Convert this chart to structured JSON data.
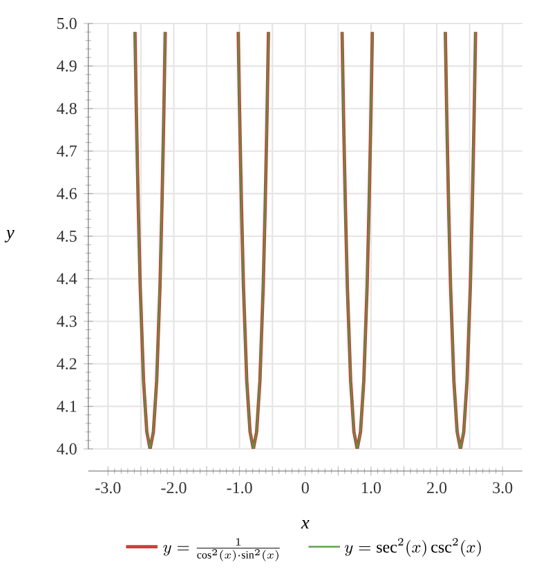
{
  "chart_data": {
    "type": "line",
    "xlabel": "x",
    "ylabel": "y",
    "x": [
      -2.59,
      -2.58,
      -2.57,
      -2.56,
      -2.54,
      -2.51,
      -2.46,
      -2.41,
      -2.36,
      -2.31,
      -2.26,
      -2.21,
      -2.18,
      -2.16,
      -2.15,
      -2.14,
      -2.13,
      -1.57,
      -1.02,
      -1.01,
      -1.0,
      -0.99,
      -0.97,
      -0.94,
      -0.89,
      -0.84,
      -0.79,
      -0.74,
      -0.69,
      -0.64,
      -0.61,
      -0.59,
      -0.58,
      -0.57,
      -0.56,
      0,
      0.56,
      0.57,
      0.58,
      0.59,
      0.61,
      0.64,
      0.69,
      0.74,
      0.79,
      0.84,
      0.89,
      0.94,
      0.97,
      0.99,
      1.0,
      1.01,
      1.02,
      1.57,
      2.13,
      2.14,
      2.15,
      2.16,
      2.18,
      2.21,
      2.26,
      2.31,
      2.36,
      2.41,
      2.46,
      2.51,
      2.54,
      2.56,
      2.57,
      2.58,
      2.59
    ],
    "series": [
      {
        "name": "y=\\frac{1}{\\cos^2(x)\\cdot\\sin^2(x)}",
        "color": "#d03c3c",
        "values": [
          4.98,
          4.89,
          4.8,
          4.72,
          4.57,
          4.38,
          4.16,
          4.04,
          4.0,
          4.04,
          4.16,
          4.38,
          4.57,
          4.72,
          4.8,
          4.89,
          4.98,
          null,
          4.98,
          4.89,
          4.8,
          4.72,
          4.57,
          4.38,
          4.16,
          4.04,
          4.0,
          4.04,
          4.16,
          4.38,
          4.57,
          4.72,
          4.8,
          4.89,
          4.98,
          null,
          4.98,
          4.89,
          4.8,
          4.72,
          4.57,
          4.38,
          4.16,
          4.04,
          4.0,
          4.04,
          4.16,
          4.38,
          4.57,
          4.72,
          4.8,
          4.89,
          4.98,
          null,
          4.98,
          4.89,
          4.8,
          4.72,
          4.57,
          4.38,
          4.16,
          4.04,
          4.0,
          4.04,
          4.16,
          4.38,
          4.57,
          4.72,
          4.8,
          4.89,
          4.98
        ]
      },
      {
        "name": "y=\\sec^2(x)\\csc^2(x)",
        "color": "#4e9a3e",
        "values": [
          4.98,
          4.89,
          4.8,
          4.72,
          4.57,
          4.38,
          4.16,
          4.04,
          4.0,
          4.04,
          4.16,
          4.38,
          4.57,
          4.72,
          4.8,
          4.89,
          4.98,
          null,
          4.98,
          4.89,
          4.8,
          4.72,
          4.57,
          4.38,
          4.16,
          4.04,
          4.0,
          4.04,
          4.16,
          4.38,
          4.57,
          4.72,
          4.8,
          4.89,
          4.98,
          null,
          4.98,
          4.89,
          4.8,
          4.72,
          4.57,
          4.38,
          4.16,
          4.04,
          4.0,
          4.04,
          4.16,
          4.38,
          4.57,
          4.72,
          4.8,
          4.89,
          4.98,
          null,
          4.98,
          4.89,
          4.8,
          4.72,
          4.57,
          4.38,
          4.16,
          4.04,
          4.0,
          4.04,
          4.16,
          4.38,
          4.57,
          4.72,
          4.8,
          4.89,
          4.98
        ]
      }
    ],
    "xlim": [
      -3.3,
      3.3
    ],
    "ylim": [
      4,
      5
    ],
    "xticks": [
      {
        "value": -3,
        "label": "-3.0"
      },
      {
        "value": -2.5,
        "label": null
      },
      {
        "value": -2,
        "label": "-2.0"
      },
      {
        "value": -1.5,
        "label": null
      },
      {
        "value": -1,
        "label": "-1.0"
      },
      {
        "value": -0.5,
        "label": null
      },
      0,
      {
        "value": 0.5,
        "label": null
      },
      {
        "value": 1,
        "label": "1.0"
      },
      {
        "value": 1.5,
        "label": null
      },
      {
        "value": 2,
        "label": "2.0"
      },
      {
        "value": 2.5,
        "label": null
      },
      {
        "value": 3,
        "label": "3.0"
      }
    ],
    "yticks": [
      {
        "value": 4,
        "label": "4.0"
      },
      4.1,
      4.2,
      4.3,
      4.4,
      4.5,
      4.6,
      4.7,
      4.8,
      4.9,
      {
        "value": 5,
        "label": "5.0"
      }
    ],
    "grid": true,
    "legend": "bottom",
    "marker": "none",
    "line_style": "solid"
  }
}
